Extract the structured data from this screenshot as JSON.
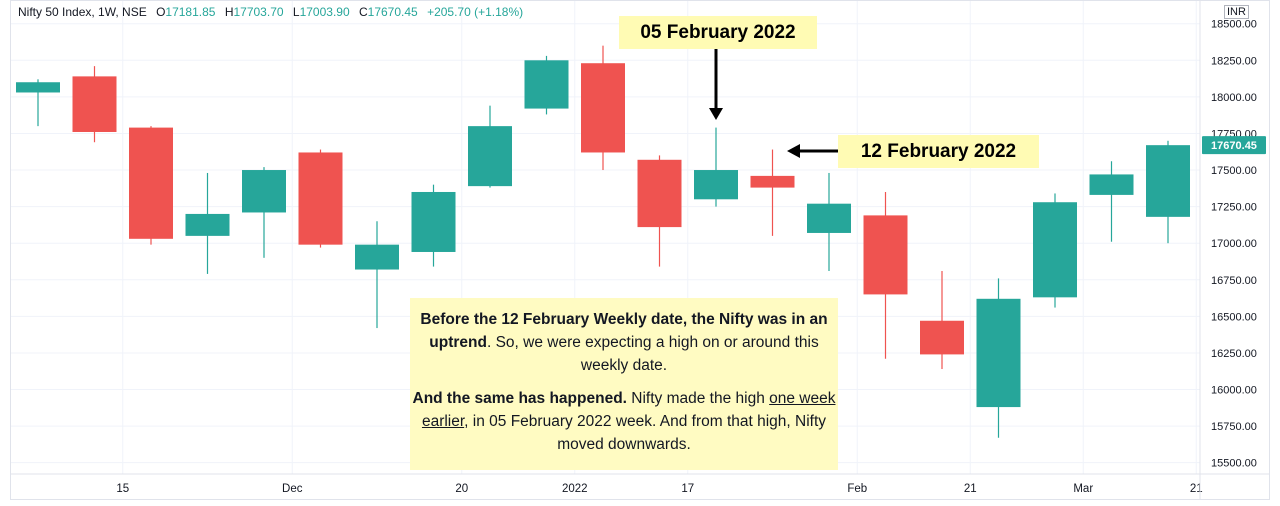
{
  "header": {
    "symbol": "Nifty 50 Index, 1W, NSE",
    "open_label": "O",
    "open": "17181.85",
    "high_label": "H",
    "high": "17703.70",
    "low_label": "L",
    "low": "17003.90",
    "close_label": "C",
    "close": "17670.45",
    "change": "+205.70 (+1.18%)"
  },
  "currency": "INR",
  "last_price_label": "17670.45",
  "colors": {
    "up": "#26a69a",
    "down": "#ef5350",
    "grid": "#f0f3fa",
    "callout_bg": "#fffbb4",
    "note_bg": "#fffbc2"
  },
  "callouts": {
    "feb05": "05 February 2022",
    "feb12": "12 February 2022"
  },
  "note": {
    "p1_bold": "Before the 12 February Weekly date, the Nifty was in an uptrend",
    "p1_rest": ". So, we were expecting a high on or around this weekly date.",
    "p2_bold": "And the same has happened.",
    "p2_mid": " Nifty made the high ",
    "p2_underline": "one week earlier",
    "p2_rest": ", in 05 February 2022 week. And from that high, Nifty moved downwards."
  },
  "chart_data": {
    "type": "candlestick",
    "interval": "1W",
    "ylim": [
      15450,
      18580
    ],
    "y_ticks": [
      15500,
      15750,
      16000,
      16250,
      16500,
      16750,
      17000,
      17250,
      17500,
      17750,
      18000,
      18250,
      18500
    ],
    "y_tick_labels": [
      "15500.00",
      "15750.00",
      "16000.00",
      "16250.00",
      "16500.00",
      "16750.00",
      "17000.00",
      "17250.00",
      "17500.00",
      "17750.00",
      "18000.00",
      "18250.00",
      "18500.00"
    ],
    "x_labels": [
      {
        "index": 1.5,
        "label": "15"
      },
      {
        "index": 4.5,
        "label": "Dec"
      },
      {
        "index": 7.5,
        "label": "20"
      },
      {
        "index": 9.5,
        "label": "2022"
      },
      {
        "index": 11.5,
        "label": "17"
      },
      {
        "index": 14.5,
        "label": "Feb"
      },
      {
        "index": 16.5,
        "label": "21"
      },
      {
        "index": 18.5,
        "label": "Mar"
      },
      {
        "index": 20.5,
        "label": "21"
      }
    ],
    "candles": [
      {
        "o": 18030,
        "h": 18120,
        "l": 17800,
        "c": 18100
      },
      {
        "o": 18140,
        "h": 18210,
        "l": 17690,
        "c": 17760
      },
      {
        "o": 17790,
        "h": 17800,
        "l": 16990,
        "c": 17030
      },
      {
        "o": 17050,
        "h": 17480,
        "l": 16790,
        "c": 17200
      },
      {
        "o": 17210,
        "h": 17520,
        "l": 16900,
        "c": 17500
      },
      {
        "o": 17620,
        "h": 17640,
        "l": 16970,
        "c": 16990
      },
      {
        "o": 16820,
        "h": 17150,
        "l": 16420,
        "c": 16990
      },
      {
        "o": 16940,
        "h": 17400,
        "l": 16840,
        "c": 17350
      },
      {
        "o": 17390,
        "h": 17940,
        "l": 17380,
        "c": 17800
      },
      {
        "o": 17920,
        "h": 18280,
        "l": 17880,
        "c": 18250
      },
      {
        "o": 18230,
        "h": 18350,
        "l": 17500,
        "c": 17620
      },
      {
        "o": 17570,
        "h": 17600,
        "l": 16840,
        "c": 17110
      },
      {
        "o": 17300,
        "h": 17790,
        "l": 17250,
        "c": 17500
      },
      {
        "o": 17460,
        "h": 17640,
        "l": 17050,
        "c": 17380
      },
      {
        "o": 17070,
        "h": 17480,
        "l": 16810,
        "c": 17270
      },
      {
        "o": 17190,
        "h": 17350,
        "l": 16210,
        "c": 16650
      },
      {
        "o": 16470,
        "h": 16810,
        "l": 16140,
        "c": 16240
      },
      {
        "o": 15880,
        "h": 16760,
        "l": 15670,
        "c": 16620
      },
      {
        "o": 16630,
        "h": 17340,
        "l": 16560,
        "c": 17280
      },
      {
        "o": 17330,
        "h": 17560,
        "l": 17010,
        "c": 17470
      },
      {
        "o": 17180,
        "h": 17700,
        "l": 17000,
        "c": 17670
      }
    ]
  }
}
